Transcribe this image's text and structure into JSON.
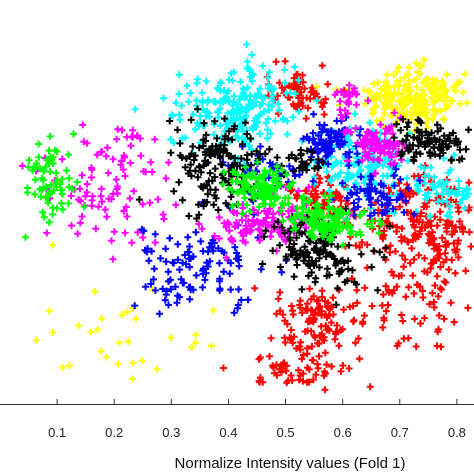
{
  "chart_data": {
    "type": "scatter",
    "title": "",
    "xlabel": "Normalize Intensity values (Fold 1)",
    "ylabel": "",
    "xlim": [
      0.0,
      0.83
    ],
    "ylim": [
      0.0,
      1.0
    ],
    "x_ticks": [
      0.1,
      0.2,
      0.3,
      0.4,
      0.5,
      0.6,
      0.7,
      0.8
    ],
    "x_tick_labels": [
      "0.1",
      "0.2",
      "0.3",
      "0.4",
      "0.5",
      "0.6",
      "0.7",
      "0.8"
    ],
    "grid": false,
    "legend": "none",
    "marker": "plus",
    "series": [
      {
        "color": "#ff0000",
        "clusters": [
          {
            "x": 0.53,
            "y": 0.86,
            "sx": 0.03,
            "sy": 0.03,
            "n": 70
          },
          {
            "x": 0.74,
            "y": 0.5,
            "sx": 0.06,
            "sy": 0.07,
            "n": 230
          },
          {
            "x": 0.56,
            "y": 0.58,
            "sx": 0.025,
            "sy": 0.025,
            "n": 55
          },
          {
            "x": 0.55,
            "y": 0.23,
            "sx": 0.04,
            "sy": 0.04,
            "n": 110
          },
          {
            "x": 0.52,
            "y": 0.1,
            "sx": 0.05,
            "sy": 0.025,
            "n": 55
          },
          {
            "x": 0.72,
            "y": 0.3,
            "sx": 0.06,
            "sy": 0.07,
            "n": 75
          }
        ]
      },
      {
        "color": "#ffff00",
        "clusters": [
          {
            "x": 0.72,
            "y": 0.85,
            "sx": 0.05,
            "sy": 0.04,
            "n": 230
          },
          {
            "x": 0.2,
            "y": 0.16,
            "sx": 0.07,
            "sy": 0.1,
            "n": 32
          }
        ]
      },
      {
        "color": "#00ffff",
        "clusters": [
          {
            "x": 0.42,
            "y": 0.82,
            "sx": 0.05,
            "sy": 0.06,
            "n": 230
          },
          {
            "x": 0.62,
            "y": 0.67,
            "sx": 0.04,
            "sy": 0.05,
            "n": 140
          },
          {
            "x": 0.77,
            "y": 0.59,
            "sx": 0.04,
            "sy": 0.04,
            "n": 80
          }
        ]
      },
      {
        "color": "#0000ff",
        "clusters": [
          {
            "x": 0.58,
            "y": 0.73,
            "sx": 0.025,
            "sy": 0.03,
            "n": 80
          },
          {
            "x": 0.66,
            "y": 0.58,
            "sx": 0.03,
            "sy": 0.03,
            "n": 70
          },
          {
            "x": 0.47,
            "y": 0.64,
            "sx": 0.03,
            "sy": 0.03,
            "n": 45
          },
          {
            "x": 0.35,
            "y": 0.38,
            "sx": 0.06,
            "sy": 0.07,
            "n": 110
          }
        ]
      },
      {
        "color": "#ff00ff",
        "clusters": [
          {
            "x": 0.66,
            "y": 0.72,
            "sx": 0.03,
            "sy": 0.03,
            "n": 90
          },
          {
            "x": 0.61,
            "y": 0.85,
            "sx": 0.015,
            "sy": 0.02,
            "n": 25
          },
          {
            "x": 0.46,
            "y": 0.5,
            "sx": 0.04,
            "sy": 0.035,
            "n": 110
          },
          {
            "x": 0.19,
            "y": 0.6,
            "sx": 0.06,
            "sy": 0.07,
            "n": 90
          },
          {
            "x": 0.23,
            "y": 0.74,
            "sx": 0.02,
            "sy": 0.03,
            "n": 10
          }
        ]
      },
      {
        "color": "#000000",
        "clusters": [
          {
            "x": 0.38,
            "y": 0.67,
            "sx": 0.04,
            "sy": 0.06,
            "n": 150
          },
          {
            "x": 0.75,
            "y": 0.72,
            "sx": 0.03,
            "sy": 0.03,
            "n": 90
          },
          {
            "x": 0.53,
            "y": 0.67,
            "sx": 0.02,
            "sy": 0.02,
            "n": 30
          },
          {
            "x": 0.55,
            "y": 0.43,
            "sx": 0.035,
            "sy": 0.05,
            "n": 120
          },
          {
            "x": 0.62,
            "y": 0.4,
            "sx": 0.03,
            "sy": 0.03,
            "n": 20
          }
        ]
      },
      {
        "color": "#00ff00",
        "clusters": [
          {
            "x": 0.46,
            "y": 0.6,
            "sx": 0.03,
            "sy": 0.03,
            "n": 120
          },
          {
            "x": 0.57,
            "y": 0.51,
            "sx": 0.035,
            "sy": 0.03,
            "n": 130
          },
          {
            "x": 0.09,
            "y": 0.63,
            "sx": 0.02,
            "sy": 0.06,
            "n": 70
          }
        ]
      }
    ]
  }
}
